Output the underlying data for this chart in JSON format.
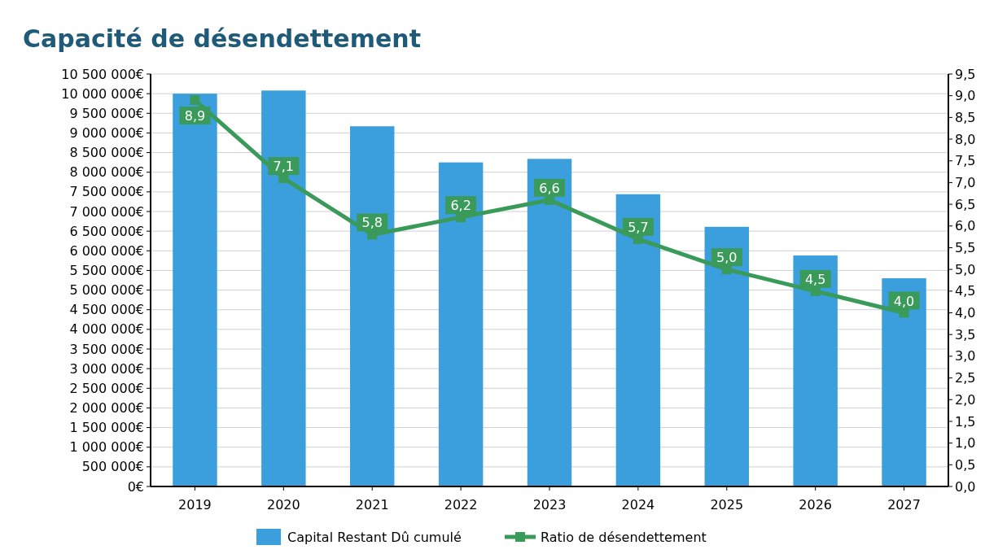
{
  "chart_data": {
    "type": "bar",
    "title": "Capacité de désendettement",
    "categories": [
      "2019",
      "2020",
      "2021",
      "2022",
      "2023",
      "2024",
      "2025",
      "2026",
      "2027"
    ],
    "series": [
      {
        "name": "Capital Restant Dû cumulé",
        "type": "bar",
        "color": "#3a9fdc",
        "values": [
          10000000,
          10080000,
          9170000,
          8250000,
          8340000,
          7440000,
          6610000,
          5880000,
          5300000
        ]
      },
      {
        "name": "Ratio de désendettement",
        "type": "line",
        "axis": "y2",
        "color": "#3a9a5a",
        "marker": "square",
        "values": [
          8.9,
          7.1,
          5.8,
          6.2,
          6.6,
          5.7,
          5.0,
          4.5,
          4.0
        ],
        "value_labels": [
          "8,9",
          "7,1",
          "5,8",
          "6,2",
          "6,6",
          "5,7",
          "5,0",
          "4,5",
          "4,0"
        ]
      }
    ],
    "ylim": [
      0,
      10500000
    ],
    "yticks": [
      {
        "value": 0,
        "label": "0€"
      },
      {
        "value": 500000,
        "label": "500 000€"
      },
      {
        "value": 1000000,
        "label": "1 000 000€"
      },
      {
        "value": 1500000,
        "label": "1 500 000€"
      },
      {
        "value": 2000000,
        "label": "2 000 000€"
      },
      {
        "value": 2500000,
        "label": "2 500 000€"
      },
      {
        "value": 3000000,
        "label": "3 000 000€"
      },
      {
        "value": 3500000,
        "label": "3 500 000€"
      },
      {
        "value": 4000000,
        "label": "4 000 000€"
      },
      {
        "value": 4500000,
        "label": "4 500 000€"
      },
      {
        "value": 5000000,
        "label": "5 000 000€"
      },
      {
        "value": 5500000,
        "label": "5 500 000€"
      },
      {
        "value": 6000000,
        "label": "6 000 000€"
      },
      {
        "value": 6500000,
        "label": "6 500 000€"
      },
      {
        "value": 7000000,
        "label": "7 000 000€"
      },
      {
        "value": 7500000,
        "label": "7 500 000€"
      },
      {
        "value": 8000000,
        "label": "8 000 000€"
      },
      {
        "value": 8500000,
        "label": "8 500 000€"
      },
      {
        "value": 9000000,
        "label": "9 000 000€"
      },
      {
        "value": 9500000,
        "label": "9 500 000€"
      },
      {
        "value": 10000000,
        "label": "10 000 000€"
      },
      {
        "value": 10500000,
        "label": "10 500 000€"
      }
    ],
    "y2lim": [
      0,
      9.5
    ],
    "y2ticks": [
      {
        "value": 0,
        "label": "0,0"
      },
      {
        "value": 0.5,
        "label": "0,5"
      },
      {
        "value": 1,
        "label": "1,0"
      },
      {
        "value": 1.5,
        "label": "1,5"
      },
      {
        "value": 2,
        "label": "2,0"
      },
      {
        "value": 2.5,
        "label": "2,5"
      },
      {
        "value": 3,
        "label": "3,0"
      },
      {
        "value": 3.5,
        "label": "3,5"
      },
      {
        "value": 4,
        "label": "4,0"
      },
      {
        "value": 4.5,
        "label": "4,5"
      },
      {
        "value": 5,
        "label": "5,0"
      },
      {
        "value": 5.5,
        "label": "5,5"
      },
      {
        "value": 6,
        "label": "6,0"
      },
      {
        "value": 6.5,
        "label": "6,5"
      },
      {
        "value": 7,
        "label": "7,0"
      },
      {
        "value": 7.5,
        "label": "7,5"
      },
      {
        "value": 8,
        "label": "8,0"
      },
      {
        "value": 8.5,
        "label": "8,5"
      },
      {
        "value": 9,
        "label": "9,0"
      },
      {
        "value": 9.5,
        "label": "9,5"
      }
    ],
    "grid": "y",
    "legend": "bottom"
  }
}
